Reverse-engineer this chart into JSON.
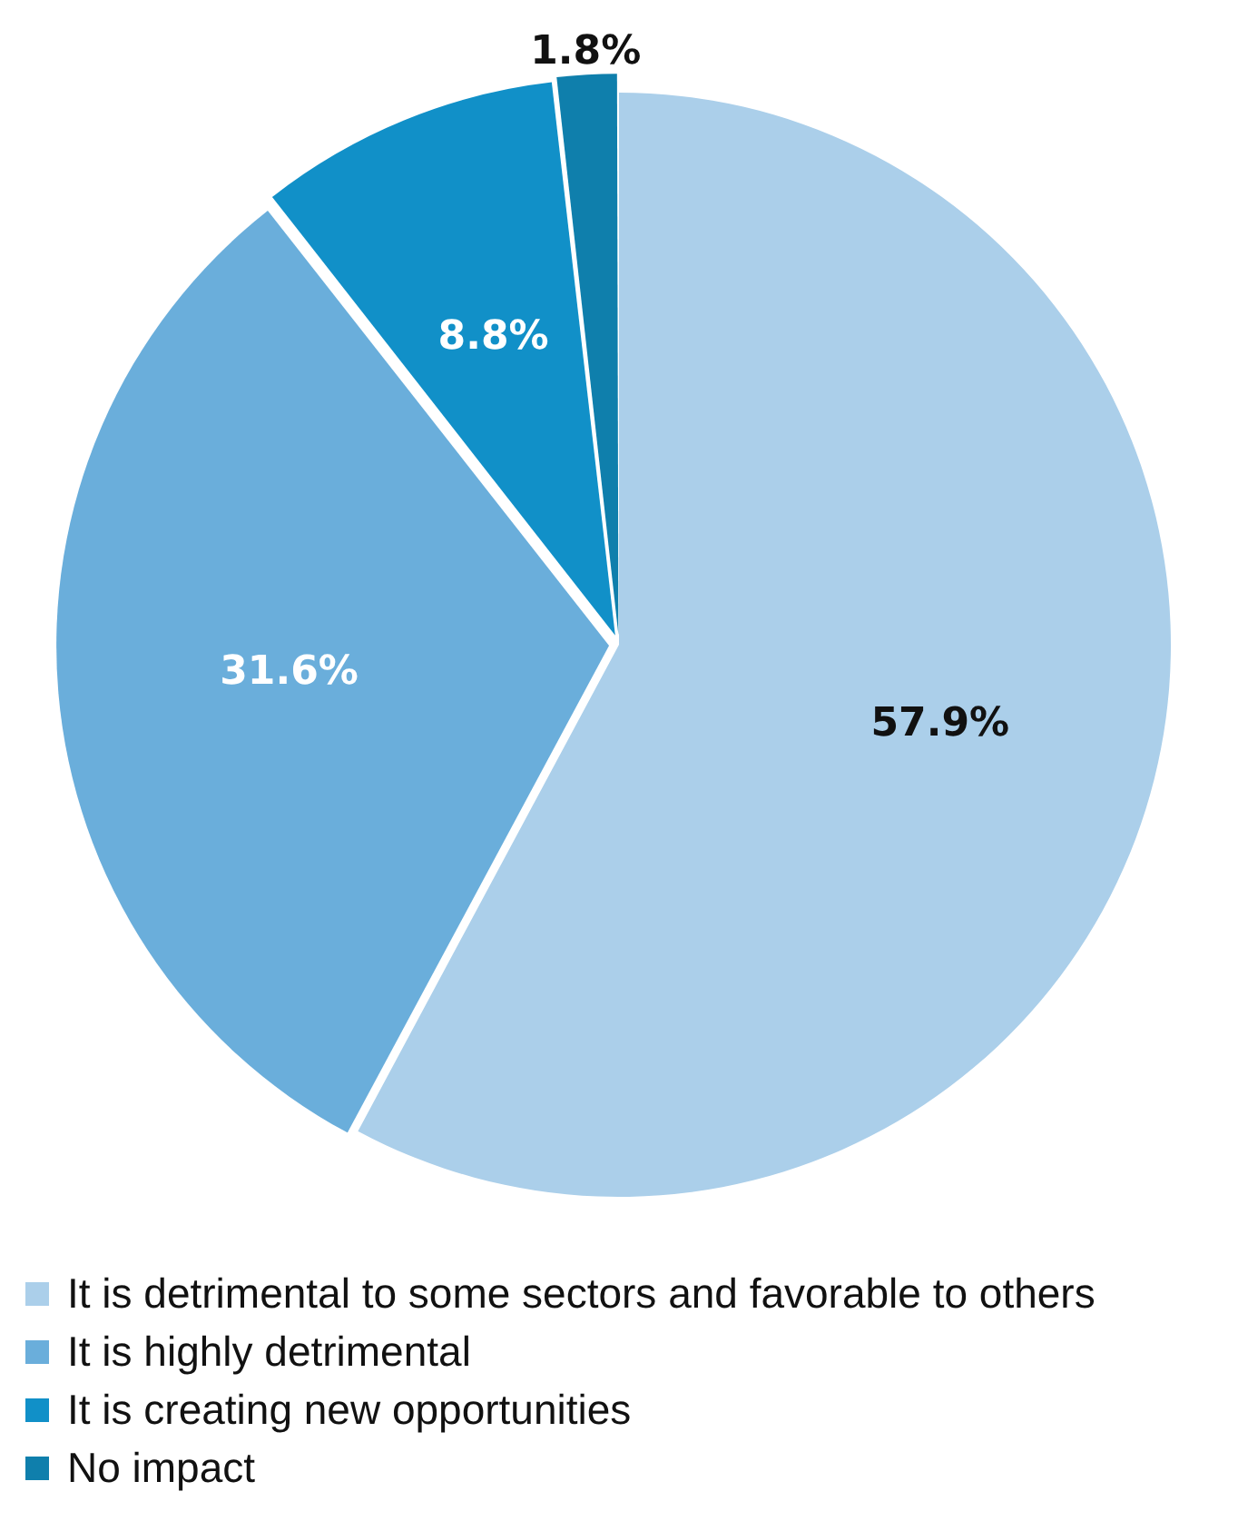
{
  "chart_data": {
    "type": "pie",
    "categories": [
      "It is detrimental to some sectors and favorable to others",
      "It is highly detrimental",
      "It is creating new opportunities",
      "No impact"
    ],
    "values": [
      57.9,
      31.6,
      8.8,
      1.8
    ],
    "colors": [
      "#abcfea",
      "#6aaedb",
      "#1190c8",
      "#0f7fac"
    ],
    "value_labels": [
      "57.9%",
      "31.6%",
      "8.8%",
      "1.8%"
    ],
    "legend": "bottom"
  }
}
